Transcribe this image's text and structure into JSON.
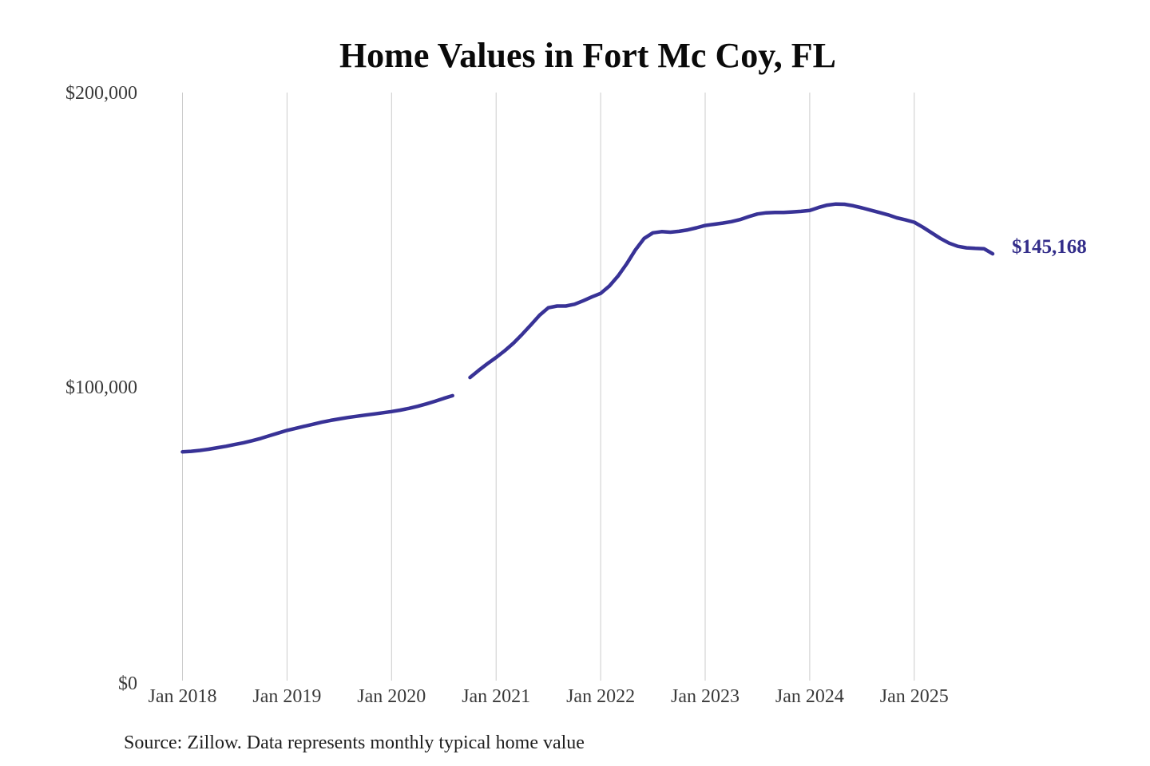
{
  "page": {
    "title": "Home Values in Fort Mc Coy, FL",
    "source_note": "Source: Zillow. Data represents monthly typical home value"
  },
  "colors": {
    "background": "#ffffff",
    "line": "#383296",
    "end_label": "#332d8a",
    "grid": "#cbcbcb",
    "title_text": "#0a0a0a",
    "axis_text": "#3a3a3a",
    "source_text": "#1f1f1f"
  },
  "chart_data": {
    "type": "line",
    "title": "Home Values in Fort Mc Coy, FL",
    "xlabel": "",
    "ylabel": "",
    "frequency": "monthly",
    "x_start_month": "2018-01",
    "x_end_month": "2025-10",
    "data_gap_month": "2020-09",
    "grid": "vertical-only",
    "ylim": [
      0,
      200000
    ],
    "y_ticks": [
      {
        "label": "$200,000",
        "value": 200000
      },
      {
        "label": "$100,000",
        "value": 100000
      },
      {
        "label": "$0",
        "value": 0
      }
    ],
    "x_tick_labels": [
      "Jan 2018",
      "Jan 2019",
      "Jan 2020",
      "Jan 2021",
      "Jan 2022",
      "Jan 2023",
      "Jan 2024",
      "Jan 2025"
    ],
    "x_tick_interval_months": 12,
    "end_label": "$145,168",
    "series": [
      {
        "name": "Typical home value",
        "final_value": 145168,
        "values": [
          77800,
          78000,
          78300,
          78700,
          79200,
          79700,
          80300,
          80900,
          81600,
          82400,
          83300,
          84200,
          85100,
          85800,
          86500,
          87200,
          87900,
          88500,
          89000,
          89500,
          89900,
          90300,
          90700,
          91100,
          91500,
          92000,
          92600,
          93300,
          94100,
          95000,
          96000,
          96900,
          null,
          103100,
          105500,
          107800,
          109900,
          112200,
          114800,
          117800,
          121000,
          124300,
          126800,
          127400,
          127400,
          128000,
          129200,
          130500,
          131700,
          134200,
          137600,
          141800,
          146500,
          150400,
          152300,
          152700,
          152500,
          152800,
          153300,
          154000,
          154800,
          155200,
          155600,
          156100,
          156800,
          157800,
          158700,
          159100,
          159200,
          159200,
          159400,
          159600,
          159900,
          160900,
          161700,
          162100,
          162000,
          161500,
          160800,
          160000,
          159200,
          158400,
          157400,
          156700,
          155900,
          154200,
          152300,
          150400,
          148800,
          147700,
          147200,
          147000,
          146900,
          145168
        ]
      }
    ]
  }
}
